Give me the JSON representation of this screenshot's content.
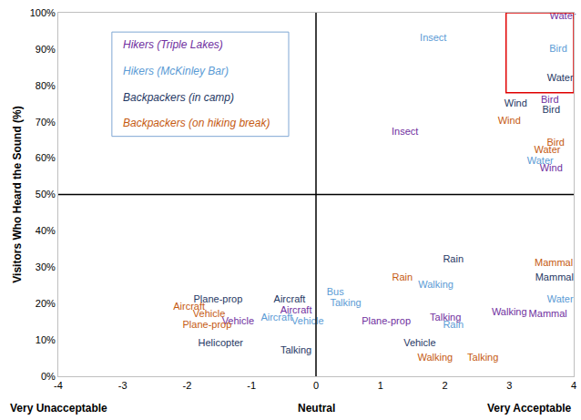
{
  "chart_data": {
    "type": "scatter",
    "marker": "text",
    "grid": false,
    "legend": "upper left",
    "ylabel": "Visitors Who Heard the Sound (%)",
    "xlim": [
      -4,
      4
    ],
    "xticks": [
      -4,
      -3,
      -2,
      -1,
      0,
      1,
      2,
      3,
      4
    ],
    "ylim": [
      0,
      100
    ],
    "yticks": [
      {
        "value": 0,
        "label": "0%"
      },
      {
        "value": 10,
        "label": "10%"
      },
      {
        "value": 20,
        "label": "20%"
      },
      {
        "value": 30,
        "label": "30%"
      },
      {
        "value": 40,
        "label": "40%"
      },
      {
        "value": 50,
        "label": "50%"
      },
      {
        "value": 60,
        "label": "60%"
      },
      {
        "value": 70,
        "label": "70%"
      },
      {
        "value": 80,
        "label": "80%"
      },
      {
        "value": 90,
        "label": "90%"
      },
      {
        "value": 100,
        "label": "100%"
      }
    ],
    "annotations": [
      {
        "x": -4,
        "text": "Very Unacceptable"
      },
      {
        "x": 0,
        "text": "Neutral"
      },
      {
        "x": 4,
        "text": "Very Acceptable"
      }
    ],
    "reference_lines": {
      "x": 0,
      "y": 50,
      "color": "#000000"
    },
    "highlight": {
      "xlim": [
        2.95,
        4
      ],
      "ylim": [
        78,
        100
      ],
      "color": "#e00000"
    },
    "series": [
      {
        "name": "Hikers (Triple Lakes)",
        "color": "#7030a0",
        "labels": [
          "Water",
          "Bird",
          "Wind",
          "Insect",
          "Walking",
          "Mammal",
          "Plane-prop",
          "Talking",
          "Aircraft",
          "Vehicle"
        ],
        "x": [
          3.83,
          3.63,
          3.65,
          1.38,
          3.0,
          3.6,
          1.09,
          2.01,
          -0.31,
          -1.21
        ],
        "values": [
          99,
          76,
          57,
          67,
          17.5,
          17,
          15,
          16,
          18,
          15
        ]
      },
      {
        "name": "Hikers (McKinley Bar)",
        "color": "#5b9bd5",
        "labels": [
          "Insect",
          "Bird",
          "Water",
          "Water",
          "Bus",
          "Talking",
          "Walking",
          "Rain",
          "Aircraft",
          "Vehicle"
        ],
        "x": [
          1.82,
          3.76,
          3.48,
          3.79,
          0.3,
          0.46,
          1.86,
          2.13,
          -0.61,
          -0.13
        ],
        "values": [
          93,
          90,
          59,
          21,
          23,
          20,
          25,
          14,
          16,
          15
        ]
      },
      {
        "name": "Backpackers (in camp)",
        "color": "#1f3864",
        "labels": [
          "Water",
          "Wind",
          "Bird",
          "Rain",
          "Mammal",
          "Plane-prop",
          "Aircraft",
          "Helicopter",
          "Talking",
          "Vehicle"
        ],
        "x": [
          3.79,
          3.1,
          3.65,
          2.13,
          3.7,
          -1.52,
          -0.41,
          -1.48,
          -0.31,
          1.61
        ],
        "values": [
          82,
          75,
          73,
          32,
          27,
          21,
          21,
          9,
          7,
          9
        ]
      },
      {
        "name": "Backpackers (on hiking break)",
        "color": "#c55a11",
        "labels": [
          "Wind",
          "Bird",
          "Water",
          "Mammal",
          "Rain",
          "Aircraft",
          "Vehicle",
          "Plane-prop",
          "Walking",
          "Talking"
        ],
        "x": [
          3.0,
          3.72,
          3.59,
          3.69,
          1.34,
          -1.97,
          -1.66,
          -1.69,
          1.85,
          2.59
        ],
        "values": [
          70,
          64,
          62,
          31,
          27,
          19,
          17,
          14,
          5,
          5
        ]
      }
    ]
  }
}
